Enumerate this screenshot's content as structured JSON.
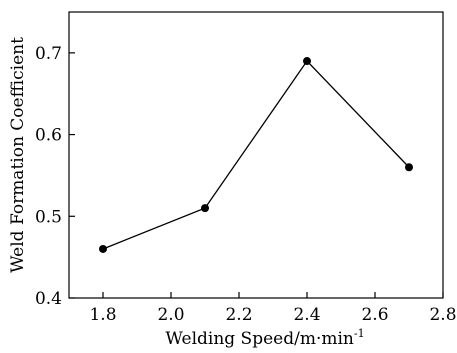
{
  "chart_data": {
    "type": "line",
    "title": "",
    "xlabel": "Welding Speed/m·min",
    "xlabel_superscript": "-1",
    "ylabel": "Weld Formation Coefficient",
    "xlim": [
      1.7,
      2.8
    ],
    "ylim": [
      0.4,
      0.75
    ],
    "xticks": [
      1.8,
      2.0,
      2.2,
      2.4,
      2.6,
      2.8
    ],
    "xtick_labels": [
      "1.8",
      "2.0",
      "2.2",
      "2.4",
      "2.6",
      "2.8"
    ],
    "yticks": [
      0.4,
      0.5,
      0.6,
      0.7
    ],
    "ytick_labels": [
      "0.4",
      "0.5",
      "0.6",
      "0.7"
    ],
    "grid": false,
    "series": [
      {
        "x": [
          1.8,
          2.1,
          2.4,
          2.7
        ],
        "y": [
          0.46,
          0.51,
          0.69,
          0.56
        ],
        "color": "#000000",
        "marker": "circle"
      }
    ]
  }
}
